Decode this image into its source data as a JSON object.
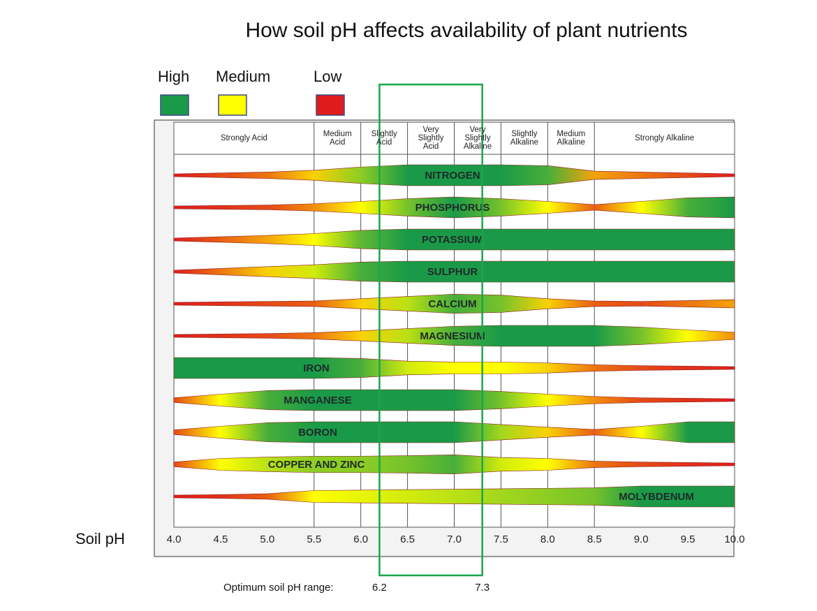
{
  "title": "How soil pH affects availability of plant nutrients",
  "legend": [
    {
      "label": "High",
      "color": "#1a9a48"
    },
    {
      "label": "Medium",
      "color": "#ffff00"
    },
    {
      "label": "Low",
      "color": "#e01b1b"
    }
  ],
  "zones": [
    {
      "label": "Strongly Acid",
      "from": 4.0,
      "to": 5.5
    },
    {
      "label": "Medium Acid",
      "from": 5.5,
      "to": 6.0
    },
    {
      "label": "Slightly Acid",
      "from": 6.0,
      "to": 6.5
    },
    {
      "label": "Very Slightly Acid",
      "from": 6.5,
      "to": 7.0
    },
    {
      "label": "Very Slightly Alkaline",
      "from": 7.0,
      "to": 7.5
    },
    {
      "label": "Slightly Alkaline",
      "from": 7.5,
      "to": 8.0
    },
    {
      "label": "Medium Alkaline",
      "from": 8.0,
      "to": 8.5
    },
    {
      "label": "Strongly Alkaline",
      "from": 8.5,
      "to": 10.0
    }
  ],
  "axis_label": "Soil pH",
  "ticks": [
    {
      "value": 4,
      "label": "4.0"
    },
    4.5,
    {
      "value": 5,
      "label": "5.0"
    },
    5.5,
    {
      "value": 6,
      "label": "6.0"
    },
    6.5,
    {
      "value": 7,
      "label": "7.0"
    },
    7.5,
    {
      "value": 8,
      "label": "8.0"
    },
    8.5,
    {
      "value": 9,
      "label": "9.0"
    },
    9.5,
    {
      "value": 10,
      "label": "10.0"
    }
  ],
  "nutrients": [
    {
      "name": "NITROGEN",
      "availability": [
        0,
        0.2,
        0.4,
        0.8,
        1.5,
        2,
        2,
        2,
        1.8,
        0.6,
        0.4,
        0.2,
        0
      ]
    },
    {
      "name": "PHOSPHORUS",
      "availability": [
        0,
        0.1,
        0.2,
        0.5,
        1,
        1.6,
        2,
        1.6,
        1,
        0.3,
        1,
        1.8,
        2
      ]
    },
    {
      "name": "POTASSIUM",
      "availability": [
        0,
        0.3,
        0.6,
        1,
        1.7,
        2,
        2,
        2,
        2,
        2,
        2,
        2,
        2
      ]
    },
    {
      "name": "SULPHUR",
      "availability": [
        0,
        0.4,
        0.8,
        1.2,
        1.8,
        2,
        2,
        2,
        2,
        2,
        2,
        2,
        2
      ]
    },
    {
      "name": "CALCIUM",
      "availability": [
        0,
        0.1,
        0.2,
        0.3,
        0.8,
        1.3,
        1.8,
        1.6,
        0.8,
        0.3,
        0.2,
        0.4,
        0.6
      ]
    },
    {
      "name": "MAGNESIUM",
      "availability": [
        0,
        0.1,
        0.2,
        0.4,
        0.8,
        1.3,
        1.8,
        2,
        2,
        2,
        1.6,
        1,
        0.5
      ]
    },
    {
      "name": "IRON",
      "availability": [
        2,
        2,
        2,
        2,
        1.8,
        1.2,
        1,
        1,
        0.8,
        0.4,
        0.2,
        0.1,
        0
      ]
    },
    {
      "name": "MANGANESE",
      "availability": [
        0.2,
        1,
        1.8,
        2,
        2,
        2,
        2,
        1.6,
        1,
        0.5,
        0.2,
        0.1,
        0
      ]
    },
    {
      "name": "BORON",
      "availability": [
        0.2,
        1,
        1.8,
        2,
        2,
        2,
        2,
        1.4,
        0.8,
        0.3,
        1,
        2,
        2
      ]
    },
    {
      "name": "COPPER AND ZINC",
      "availability": [
        0.2,
        1,
        1.3,
        1.5,
        1.5,
        1.6,
        1.8,
        1.2,
        1,
        0.4,
        0.2,
        0.1,
        0
      ]
    },
    {
      "name": "MOLYBDENUM",
      "availability": [
        0,
        0.1,
        0.3,
        1,
        1.1,
        1.2,
        1.3,
        1.4,
        1.5,
        1.6,
        2,
        2,
        2
      ]
    }
  ],
  "optimum": {
    "label": "Optimum soil pH range:",
    "from": 6.2,
    "to": 7.3,
    "color": "#1aa64a"
  }
}
